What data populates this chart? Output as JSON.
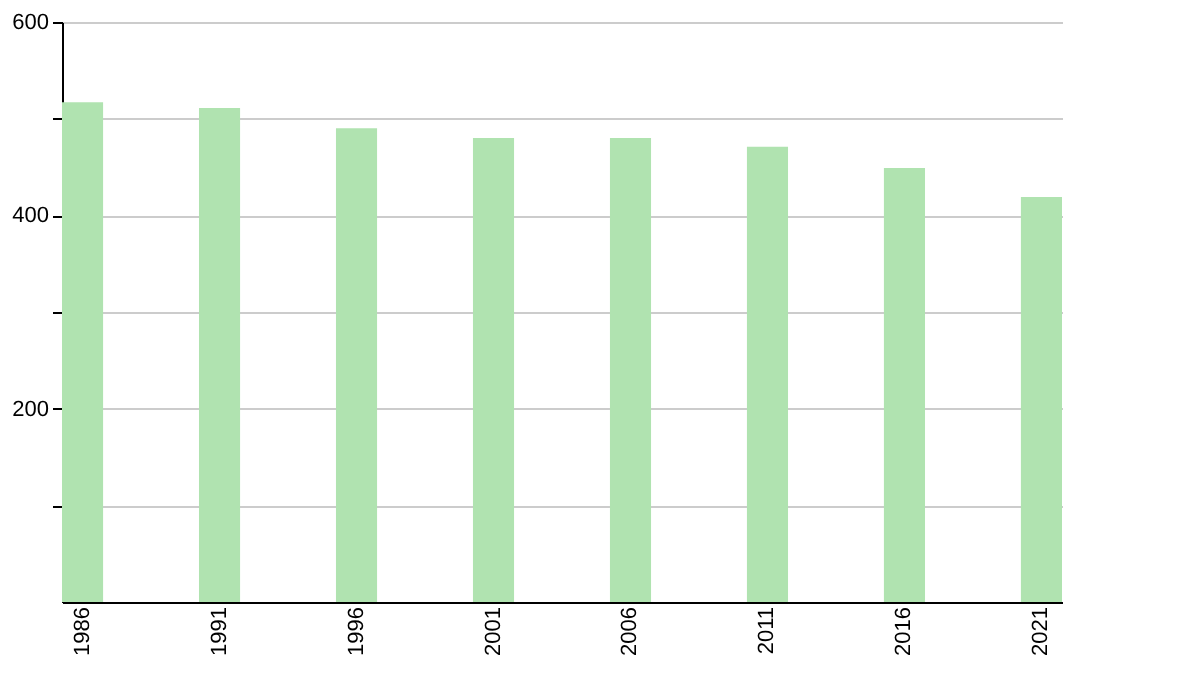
{
  "chart_data": {
    "type": "bar",
    "categories": [
      "1986",
      "1991",
      "1996",
      "2001",
      "2006",
      "2011",
      "2016",
      "2021"
    ],
    "values": [
      517,
      511,
      490,
      480,
      480,
      471,
      449,
      419
    ],
    "color": "#b0e3b0",
    "ylim": [
      0,
      600
    ],
    "yticks": [
      {
        "value": 100,
        "label": null
      },
      200,
      {
        "value": 300,
        "label": null
      },
      400,
      {
        "value": 500,
        "label": null
      },
      600
    ],
    "grid": true
  }
}
